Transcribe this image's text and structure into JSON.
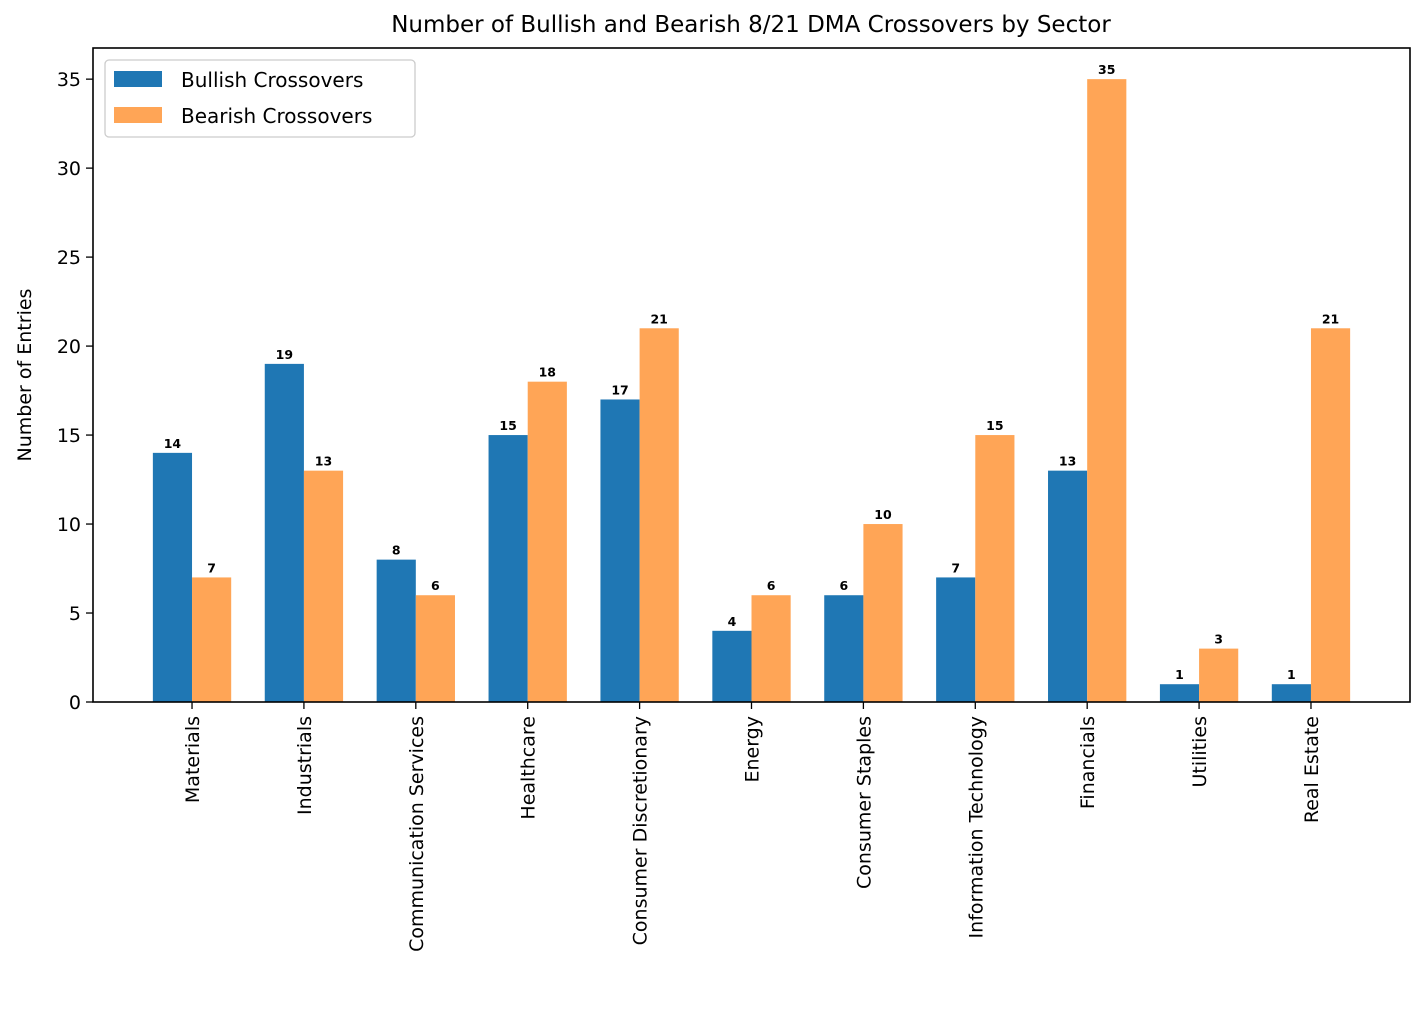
{
  "chart_data": {
    "type": "bar",
    "title": "Number of Bullish and Bearish 8/21 DMA Crossovers by Sector",
    "xlabel": "",
    "ylabel": "Number of Entries",
    "ylim": [
      0,
      36.75
    ],
    "yticks": [
      0,
      5,
      10,
      15,
      20,
      25,
      30,
      35
    ],
    "grid": false,
    "legend": "top-left",
    "categories": [
      "Materials",
      "Industrials",
      "Communication Services",
      "Healthcare",
      "Consumer Discretionary",
      "Energy",
      "Consumer Staples",
      "Information Technology",
      "Financials",
      "Utilities",
      "Real Estate"
    ],
    "series": [
      {
        "name": "Bullish Crossovers",
        "color": "#1f77b4",
        "values": [
          14,
          19,
          8,
          15,
          17,
          4,
          6,
          7,
          13,
          1,
          1
        ]
      },
      {
        "name": "Bearish Crossovers",
        "color": "#ffa556",
        "values": [
          7,
          13,
          6,
          18,
          21,
          6,
          10,
          15,
          35,
          3,
          21
        ]
      }
    ]
  }
}
